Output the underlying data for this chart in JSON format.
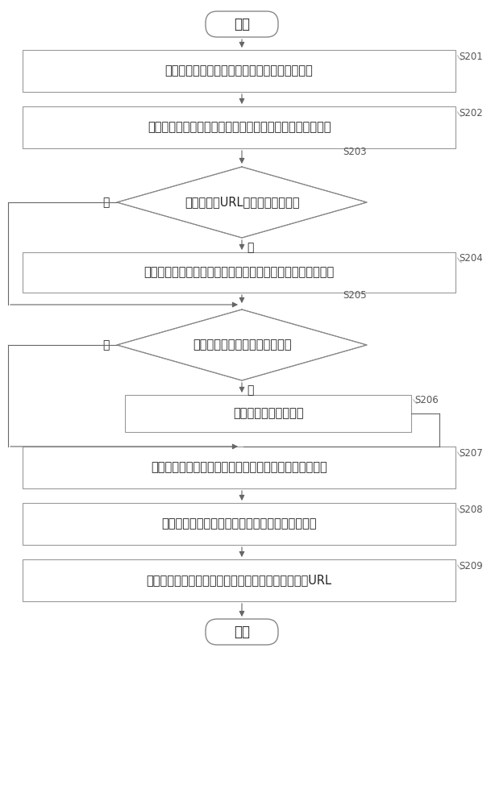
{
  "bg_color": "#ffffff",
  "line_color": "#666666",
  "text_color": "#222222",
  "box_border_color": "#999999",
  "start_end_text": {
    "start": "开始",
    "end": "结束"
  },
  "steps": [
    {
      "id": "S201",
      "text": "接收用户在应用程序中触发的对文件的下载请求",
      "label": "S201"
    },
    {
      "id": "S202",
      "text": "获取文件的长度并计算文件的每个下载线程的下载起止位置",
      "label": "S202"
    },
    {
      "id": "S203",
      "text": "判断文件的URL是否在下载列表中",
      "label": "S203",
      "yes": "是",
      "no": "否"
    },
    {
      "id": "S204",
      "text": "将每个下载线程的下载起止位置加上各线程已下载的数据长度",
      "label": "S204"
    },
    {
      "id": "S205",
      "text": "判断线程池中是否存在空闲线程",
      "label": "S205",
      "yes": "是",
      "no": "否"
    },
    {
      "id": "S206",
      "text": "进入下载线程等待序列",
      "label": "S206"
    },
    {
      "id": "S207",
      "text": "将文件的每个下载线程分配给空闲线程，并进行并行下载",
      "label": "S207"
    },
    {
      "id": "S208",
      "text": "每个下载线程下载完成后，更新该下载线程的状态",
      "label": "S208"
    },
    {
      "id": "S209",
      "text": "检测到该文件的所有线程下载结束后，删除该文件的URL",
      "label": "S209"
    }
  ]
}
